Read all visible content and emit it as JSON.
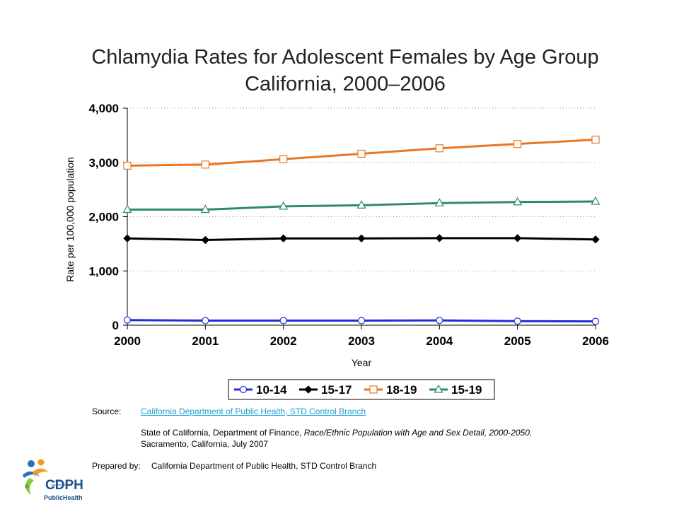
{
  "title_line1": "Chlamydia Rates for Adolescent Females by Age Group",
  "title_line2": "California, 2000–2006",
  "chart_data": {
    "type": "line",
    "x": [
      "2000",
      "2001",
      "2002",
      "2003",
      "2004",
      "2005",
      "2006"
    ],
    "ylim": [
      0,
      4000
    ],
    "yticks": [
      "0",
      "1,000",
      "2,000",
      "3,000",
      "4,000"
    ],
    "xlabel": "Year",
    "ylabel": "Rate per 100,000 population",
    "grid": "horizontal dotted",
    "legend_position": "bottom",
    "series": [
      {
        "name": "10-14",
        "marker": "circle",
        "color": "#1f2fd8",
        "values": [
          95,
          85,
          85,
          85,
          88,
          75,
          70
        ]
      },
      {
        "name": "15-17",
        "marker": "diamond",
        "color": "#000000",
        "values": [
          1600,
          1570,
          1600,
          1600,
          1605,
          1605,
          1580
        ]
      },
      {
        "name": "18-19",
        "marker": "square",
        "color": "#e87722",
        "values": [
          2940,
          2960,
          3060,
          3160,
          3260,
          3340,
          3420
        ]
      },
      {
        "name": "15-19",
        "marker": "triangle",
        "color": "#2e8b6a",
        "values": [
          2130,
          2130,
          2190,
          2210,
          2250,
          2270,
          2280
        ]
      }
    ]
  },
  "source": {
    "label": "Source:",
    "link": "California Department of Public Health, STD Control Branch",
    "line2_prefix": "State of California, Department of Finance, ",
    "line2_italic": "Race/Ethnic Population with Age and Sex Detail, 2000-2050.",
    "line3": "Sacramento, California, July 2007",
    "prepared_label": "Prepared by:",
    "prepared_value": "California Department of Public Health, STD Control Branch"
  },
  "logo": {
    "mark": "CDPH",
    "sub": "California Department of",
    "name": "PublicHealth"
  }
}
